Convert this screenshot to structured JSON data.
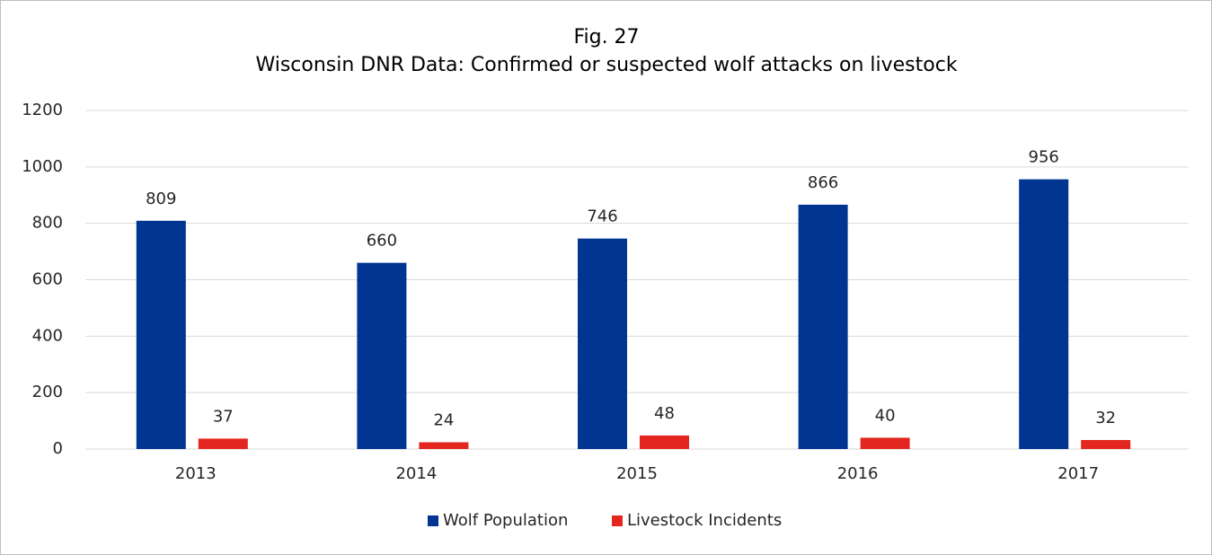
{
  "chart_data": {
    "type": "bar",
    "title": "Fig. 27",
    "subtitle": "Wisconsin DNR Data: Confirmed or suspected wolf attacks on livestock",
    "categories": [
      "2013",
      "2014",
      "2015",
      "2016",
      "2017"
    ],
    "series": [
      {
        "name": "Wolf Population",
        "color": "#003591",
        "values": [
          809,
          660,
          746,
          866,
          956
        ]
      },
      {
        "name": "Livestock Incidents",
        "color": "#e3261f",
        "values": [
          37,
          24,
          48,
          40,
          32
        ]
      }
    ],
    "ylim": [
      0,
      1200
    ],
    "yticks": [
      0,
      200,
      400,
      600,
      800,
      1000,
      1200
    ],
    "grid": true,
    "legend": "bottom"
  }
}
